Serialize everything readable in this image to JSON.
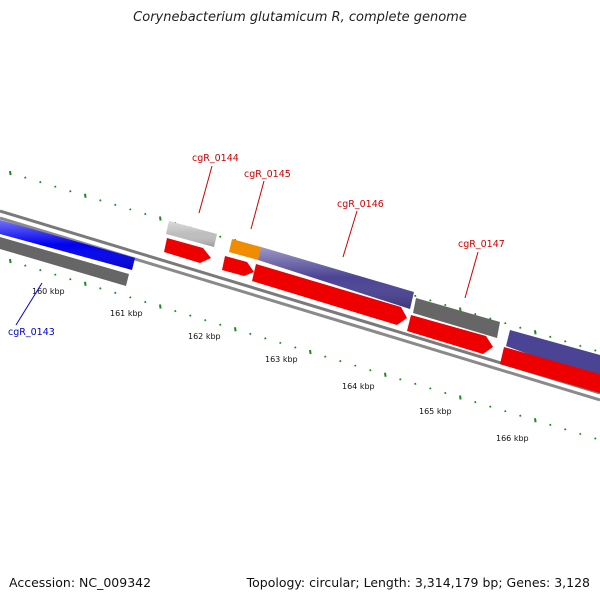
{
  "title": "Corynebacterium glutamicum R, complete genome",
  "footer": {
    "accession": "Accession: NC_009342",
    "summary": "Topology: circular; Length: 3,314,179 bp; Genes: 3,128"
  },
  "colors": {
    "gene_label_red": "#cc0000",
    "gene_label_blue": "#0000cc",
    "tick_green": "#1a8a1a",
    "backbone": "#888888",
    "cds_red": "#ee0000",
    "gene_gray": "#666666",
    "gene_blue": "#0000ee",
    "gene_purple": "#4b4394",
    "gene_orange": "#f08c00",
    "gene_lightgray": "#bdbdbd"
  },
  "scale_labels": [
    "160 kbp",
    "161 kbp",
    "162 kbp",
    "163 kbp",
    "164 kbp",
    "165 kbp",
    "166 kbp"
  ],
  "gene_labels": {
    "g0143": "cgR_0143",
    "g0144": "cgR_0144",
    "g0145": "cgR_0145",
    "g0146": "cgR_0146",
    "g0147": "cgR_0147"
  }
}
